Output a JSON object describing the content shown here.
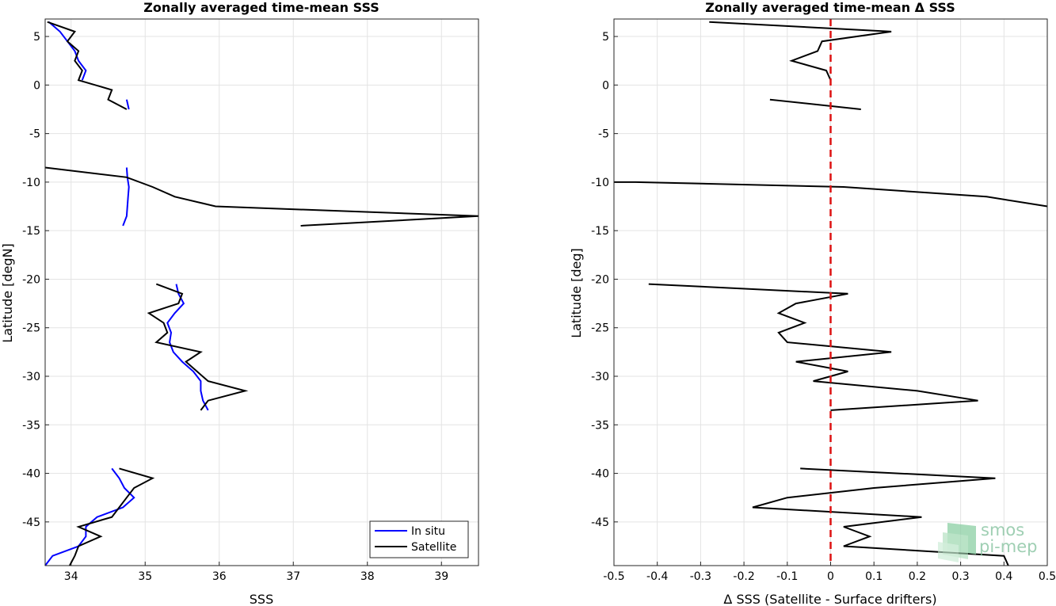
{
  "chart_data": [
    {
      "type": "line",
      "title": "Zonally averaged time-mean SSS",
      "xlabel": "SSS",
      "ylabel": "Latitude [degN]",
      "xlim": [
        33.65,
        39.5
      ],
      "ylim": [
        -49.5,
        6.8
      ],
      "xticks": [
        34,
        35,
        36,
        37,
        38,
        39
      ],
      "yticks": [
        5,
        0,
        -5,
        -10,
        -15,
        -20,
        -25,
        -30,
        -35,
        -40,
        -45
      ],
      "grid": true,
      "legend": {
        "placement": "bottom-right",
        "entries": [
          "In situ",
          "Satellite"
        ]
      },
      "series": [
        {
          "name": "In situ",
          "color": "#0000ff",
          "segments": [
            [
              [
                33.7,
                6.5
              ],
              [
                33.85,
                5.5
              ],
              [
                33.95,
                4.5
              ],
              [
                34.05,
                3.5
              ],
              [
                34.1,
                2.5
              ],
              [
                34.2,
                1.5
              ],
              [
                34.15,
                0.5
              ]
            ],
            [
              [
                34.75,
                -1.5
              ],
              [
                34.78,
                -2.5
              ]
            ],
            [
              [
                34.75,
                -8.5
              ],
              [
                34.76,
                -9.5
              ],
              [
                34.78,
                -10.5
              ],
              [
                34.77,
                -11.5
              ],
              [
                34.76,
                -12.5
              ],
              [
                34.75,
                -13.5
              ],
              [
                34.7,
                -14.5
              ]
            ],
            [
              [
                35.42,
                -20.5
              ],
              [
                35.45,
                -21.5
              ],
              [
                35.52,
                -22.5
              ],
              [
                35.4,
                -23.5
              ],
              [
                35.3,
                -24.5
              ],
              [
                35.35,
                -25.5
              ],
              [
                35.33,
                -26.5
              ],
              [
                35.38,
                -27.5
              ],
              [
                35.5,
                -28.5
              ],
              [
                35.65,
                -29.5
              ],
              [
                35.75,
                -30.5
              ],
              [
                35.75,
                -31.5
              ],
              [
                35.78,
                -32.5
              ],
              [
                35.85,
                -33.5
              ]
            ],
            [
              [
                34.55,
                -39.5
              ],
              [
                34.65,
                -40.5
              ],
              [
                34.72,
                -41.5
              ],
              [
                34.85,
                -42.5
              ],
              [
                34.7,
                -43.5
              ],
              [
                34.35,
                -44.5
              ],
              [
                34.2,
                -45.5
              ],
              [
                34.2,
                -46.5
              ],
              [
                34.1,
                -47.5
              ],
              [
                33.75,
                -48.5
              ],
              [
                33.65,
                -49.5
              ]
            ]
          ]
        },
        {
          "name": "Satellite",
          "color": "#000000",
          "segments": [
            [
              [
                33.68,
                6.5
              ],
              [
                34.05,
                5.5
              ],
              [
                33.95,
                4.5
              ],
              [
                34.1,
                3.5
              ],
              [
                34.05,
                2.5
              ],
              [
                34.15,
                1.5
              ],
              [
                34.1,
                0.5
              ],
              [
                34.55,
                -0.5
              ],
              [
                34.5,
                -1.5
              ],
              [
                34.75,
                -2.5
              ]
            ],
            [
              [
                33.65,
                -8.5
              ],
              [
                34.75,
                -9.5
              ],
              [
                35.1,
                -10.5
              ],
              [
                35.4,
                -11.5
              ],
              [
                35.95,
                -12.5
              ],
              [
                39.5,
                -13.5
              ],
              [
                37.1,
                -14.5
              ]
            ],
            [
              [
                35.15,
                -20.5
              ],
              [
                35.5,
                -21.5
              ],
              [
                35.45,
                -22.5
              ],
              [
                35.05,
                -23.5
              ],
              [
                35.25,
                -24.5
              ],
              [
                35.3,
                -25.5
              ],
              [
                35.15,
                -26.5
              ],
              [
                35.75,
                -27.5
              ],
              [
                35.55,
                -28.5
              ],
              [
                35.7,
                -29.5
              ],
              [
                35.85,
                -30.5
              ],
              [
                36.35,
                -31.5
              ],
              [
                35.85,
                -32.5
              ],
              [
                35.75,
                -33.5
              ]
            ],
            [
              [
                34.65,
                -39.5
              ],
              [
                35.1,
                -40.5
              ],
              [
                34.85,
                -41.5
              ],
              [
                34.75,
                -42.5
              ],
              [
                34.65,
                -43.5
              ],
              [
                34.55,
                -44.5
              ],
              [
                34.1,
                -45.5
              ],
              [
                34.4,
                -46.5
              ],
              [
                34.1,
                -47.5
              ],
              [
                34.05,
                -48.5
              ],
              [
                33.98,
                -49.5
              ]
            ]
          ]
        }
      ]
    },
    {
      "type": "line",
      "title": "Zonally averaged time-mean Δ SSS",
      "xlabel": "Δ SSS (Satellite - Surface drifters)",
      "ylabel": "Latitude [deg]",
      "xlim": [
        -0.5,
        0.5
      ],
      "ylim": [
        -49.5,
        6.8
      ],
      "xticks": [
        -0.5,
        -0.4,
        -0.3,
        -0.2,
        -0.1,
        0,
        0.1,
        0.2,
        0.3,
        0.4,
        0.5
      ],
      "xtick_labels": [
        "-0.5",
        "-0.4",
        "-0.3",
        "-0.2",
        "-0.1",
        "0",
        "0.1",
        "0.2",
        "0.3",
        "0.4",
        "0.5"
      ],
      "yticks": [
        5,
        0,
        -5,
        -10,
        -15,
        -20,
        -25,
        -30,
        -35,
        -40,
        -45
      ],
      "grid": true,
      "reference_line": {
        "x": 0,
        "color": "#dd1111",
        "style": "dashed"
      },
      "series": [
        {
          "color": "#000000",
          "segments": [
            [
              [
                -0.28,
                6.5
              ],
              [
                0.14,
                5.5
              ],
              [
                -0.02,
                4.5
              ],
              [
                -0.03,
                3.5
              ],
              [
                -0.09,
                2.5
              ],
              [
                -0.01,
                1.5
              ],
              [
                0.0,
                0.5
              ]
            ],
            [
              [
                -0.14,
                -1.5
              ],
              [
                0.07,
                -2.5
              ]
            ],
            [
              [
                -0.5,
                -10.0
              ],
              [
                -0.45,
                -10.0
              ],
              [
                0.03,
                -10.5
              ],
              [
                0.36,
                -11.5
              ],
              [
                0.5,
                -12.5
              ]
            ],
            [
              [
                -0.42,
                -20.5
              ],
              [
                0.04,
                -21.5
              ],
              [
                -0.08,
                -22.5
              ],
              [
                -0.12,
                -23.5
              ],
              [
                -0.06,
                -24.5
              ],
              [
                -0.12,
                -25.5
              ],
              [
                -0.1,
                -26.5
              ],
              [
                0.14,
                -27.5
              ],
              [
                -0.08,
                -28.5
              ],
              [
                0.04,
                -29.5
              ],
              [
                -0.04,
                -30.5
              ],
              [
                0.2,
                -31.5
              ],
              [
                0.34,
                -32.5
              ],
              [
                0.0,
                -33.5
              ]
            ],
            [
              [
                -0.07,
                -39.5
              ],
              [
                0.38,
                -40.5
              ],
              [
                0.1,
                -41.5
              ],
              [
                -0.1,
                -42.5
              ],
              [
                -0.18,
                -43.5
              ],
              [
                0.21,
                -44.5
              ],
              [
                0.03,
                -45.5
              ],
              [
                0.09,
                -46.5
              ],
              [
                0.03,
                -47.5
              ],
              [
                0.4,
                -48.5
              ],
              [
                0.41,
                -49.5
              ]
            ]
          ]
        }
      ]
    }
  ],
  "logo": {
    "line1": "smos",
    "line2": "pi-mep"
  }
}
